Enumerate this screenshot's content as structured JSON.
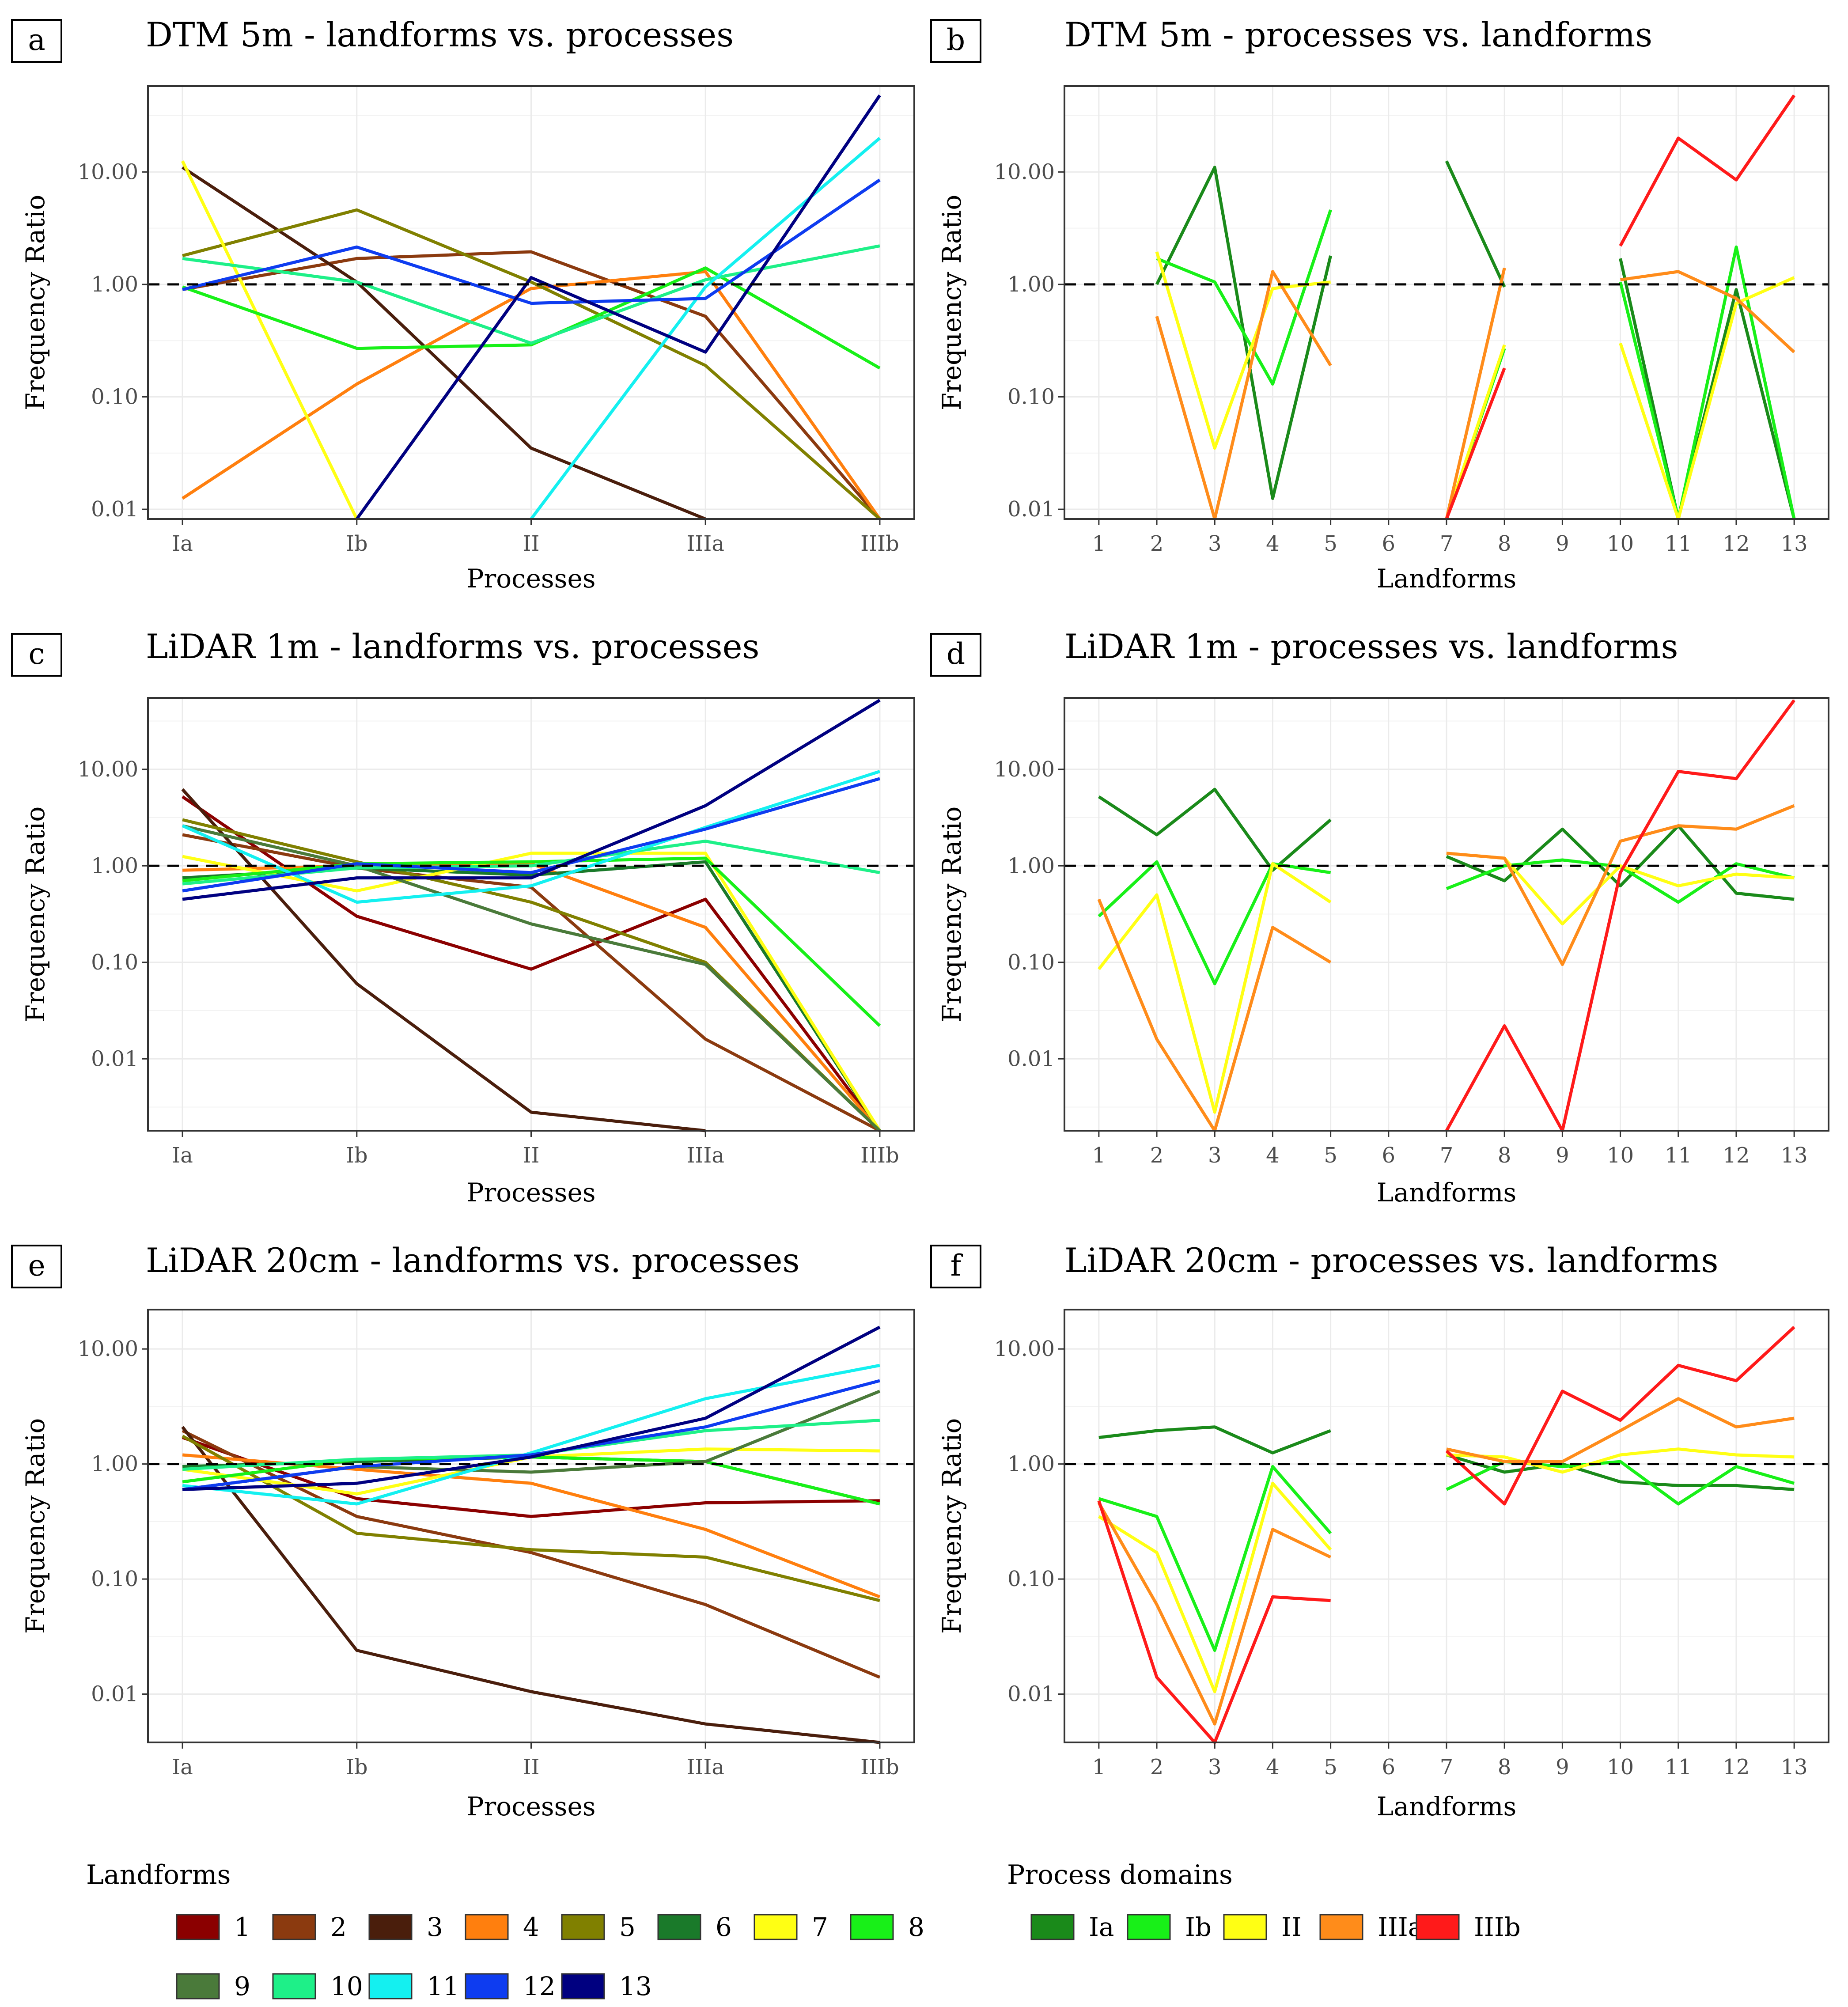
{
  "chart_data": [
    {
      "id": "a",
      "type": "line",
      "title": "DTM 5m - landforms vs. processes",
      "xlabel": "Processes",
      "ylabel": "Frequency Ratio",
      "yscale": "log10",
      "ylim": [
        0.0082,
        58
      ],
      "yticks": [
        {
          "value": 0.01,
          "label": "0.01"
        },
        {
          "value": 0.1,
          "label": "0.10"
        },
        {
          "value": 1,
          "label": "1.00"
        },
        {
          "value": 10,
          "label": "10.00"
        }
      ],
      "reference_line": 1,
      "categories": [
        "Ia",
        "Ib",
        "II",
        "IIIa",
        "IIIb"
      ],
      "series": [
        {
          "name": "2",
          "color": "#8B3A0F",
          "values": [
            0.9,
            1.7,
            1.95,
            0.52,
            0.0082
          ]
        },
        {
          "name": "3",
          "color": "#4A1E0C",
          "values": [
            11.0,
            1.05,
            0.035,
            0.0082,
            null
          ]
        },
        {
          "name": "4",
          "color": "#FF7F0E",
          "values": [
            0.0125,
            0.13,
            0.92,
            1.3,
            0.0082
          ]
        },
        {
          "name": "5",
          "color": "#808000",
          "values": [
            1.8,
            4.6,
            1.05,
            0.19,
            0.0082
          ]
        },
        {
          "name": "7",
          "color": "#FFFF14",
          "values": [
            12.5,
            0.0082,
            null,
            null,
            null
          ]
        },
        {
          "name": "8",
          "color": "#18F018",
          "values": [
            0.95,
            0.27,
            0.29,
            1.4,
            0.18
          ]
        },
        {
          "name": "10",
          "color": "#1EF088",
          "values": [
            1.7,
            1.05,
            0.3,
            1.1,
            2.2
          ]
        },
        {
          "name": "11",
          "color": "#14F0F0",
          "values": [
            null,
            null,
            0.0082,
            0.95,
            20.0
          ]
        },
        {
          "name": "12",
          "color": "#0E3CF0",
          "values": [
            0.9,
            2.15,
            0.68,
            0.75,
            8.5
          ]
        },
        {
          "name": "13",
          "color": "#000080",
          "values": [
            null,
            0.0082,
            1.15,
            0.25,
            48.0
          ]
        }
      ]
    },
    {
      "id": "b",
      "type": "line",
      "title": "DTM 5m - processes vs. landforms",
      "xlabel": "Landforms",
      "ylabel": "Frequency Ratio",
      "yscale": "log10",
      "ylim": [
        0.0082,
        58
      ],
      "yticks": [
        {
          "value": 0.01,
          "label": "0.01"
        },
        {
          "value": 0.1,
          "label": "0.10"
        },
        {
          "value": 1,
          "label": "1.00"
        },
        {
          "value": 10,
          "label": "10.00"
        }
      ],
      "reference_line": 1,
      "categories": [
        "1",
        "2",
        "3",
        "4",
        "5",
        "6",
        "7",
        "8",
        "9",
        "10",
        "11",
        "12",
        "13"
      ],
      "series": [
        {
          "name": "Ia",
          "color": "#1A8A1A",
          "values": [
            null,
            1.0,
            11.0,
            0.0125,
            1.8,
            null,
            12.5,
            0.95,
            null,
            1.7,
            0.0082,
            0.9,
            0.0082
          ]
        },
        {
          "name": "Ib",
          "color": "#18F018",
          "values": [
            null,
            1.7,
            1.05,
            0.13,
            4.6,
            null,
            0.0082,
            0.27,
            null,
            1.05,
            0.0082,
            2.15,
            0.0082
          ]
        },
        {
          "name": "II",
          "color": "#FFFF14",
          "values": [
            null,
            1.95,
            0.035,
            0.92,
            1.05,
            null,
            0.0082,
            0.29,
            null,
            0.3,
            0.0082,
            0.68,
            1.15
          ]
        },
        {
          "name": "IIIa",
          "color": "#FF8C1A",
          "values": [
            null,
            0.52,
            0.0082,
            1.3,
            0.19,
            null,
            0.0082,
            1.4,
            null,
            1.1,
            1.3,
            0.75,
            0.25
          ]
        },
        {
          "name": "IIIb",
          "color": "#FF1A1A",
          "values": [
            null,
            null,
            null,
            null,
            null,
            null,
            0.0082,
            0.18,
            null,
            2.2,
            20.0,
            8.5,
            48.0
          ]
        }
      ]
    },
    {
      "id": "c",
      "type": "line",
      "title": "LiDAR 1m - landforms vs. processes",
      "xlabel": "Processes",
      "ylabel": "Frequency Ratio",
      "yscale": "log10",
      "ylim": [
        0.0018,
        55
      ],
      "yticks": [
        {
          "value": 0.01,
          "label": "0.01"
        },
        {
          "value": 0.1,
          "label": "0.10"
        },
        {
          "value": 1,
          "label": "1.00"
        },
        {
          "value": 10,
          "label": "10.00"
        }
      ],
      "reference_line": 1,
      "categories": [
        "Ia",
        "Ib",
        "II",
        "IIIa",
        "IIIb"
      ],
      "series": [
        {
          "name": "1",
          "color": "#8B0000",
          "values": [
            5.2,
            0.3,
            0.085,
            0.45,
            0.0018
          ]
        },
        {
          "name": "2",
          "color": "#8B3A0F",
          "values": [
            2.1,
            0.95,
            0.6,
            0.016,
            0.0018
          ]
        },
        {
          "name": "3",
          "color": "#4A1E0C",
          "values": [
            6.2,
            0.06,
            0.0028,
            0.0018,
            null
          ]
        },
        {
          "name": "4",
          "color": "#FF7F0E",
          "values": [
            0.9,
            1.0,
            1.05,
            0.23,
            0.0018
          ]
        },
        {
          "name": "5",
          "color": "#808000",
          "values": [
            3.0,
            1.1,
            0.42,
            0.1,
            0.0018
          ]
        },
        {
          "name": "6",
          "color": "#1A7A2A",
          "values": [
            0.75,
            0.95,
            0.8,
            1.1,
            0.0018
          ]
        },
        {
          "name": "7",
          "color": "#FFFF14",
          "values": [
            1.25,
            0.55,
            1.35,
            1.35,
            0.0018
          ]
        },
        {
          "name": "8",
          "color": "#18F018",
          "values": [
            0.7,
            1.05,
            1.1,
            1.2,
            0.022
          ]
        },
        {
          "name": "9",
          "color": "#4A7A3A",
          "values": [
            2.6,
            1.0,
            0.25,
            0.095,
            0.0018
          ]
        },
        {
          "name": "10",
          "color": "#1EF088",
          "values": [
            0.65,
            0.95,
            1.0,
            1.8,
            0.85
          ]
        },
        {
          "name": "11",
          "color": "#14F0F0",
          "values": [
            2.6,
            0.42,
            0.62,
            2.5,
            9.5
          ]
        },
        {
          "name": "12",
          "color": "#0E3CF0",
          "values": [
            0.55,
            1.05,
            0.85,
            2.4,
            8.0
          ]
        },
        {
          "name": "13",
          "color": "#000080",
          "values": [
            0.45,
            0.75,
            0.75,
            4.2,
            52.0
          ]
        }
      ]
    },
    {
      "id": "d",
      "type": "line",
      "title": "LiDAR 1m - processes vs. landforms",
      "xlabel": "Landforms",
      "ylabel": "Frequency Ratio",
      "yscale": "log10",
      "ylim": [
        0.0018,
        55
      ],
      "yticks": [
        {
          "value": 0.01,
          "label": "0.01"
        },
        {
          "value": 0.1,
          "label": "0.10"
        },
        {
          "value": 1,
          "label": "1.00"
        },
        {
          "value": 10,
          "label": "10.00"
        }
      ],
      "reference_line": 1,
      "categories": [
        "1",
        "2",
        "3",
        "4",
        "5",
        "6",
        "7",
        "8",
        "9",
        "10",
        "11",
        "12",
        "13"
      ],
      "series": [
        {
          "name": "Ia",
          "color": "#1A8A1A",
          "values": [
            5.2,
            2.1,
            6.2,
            0.9,
            3.0,
            null,
            1.25,
            0.7,
            2.4,
            0.62,
            2.6,
            0.52,
            0.45
          ]
        },
        {
          "name": "Ib",
          "color": "#18F018",
          "values": [
            0.3,
            1.1,
            0.06,
            1.05,
            0.85,
            null,
            0.58,
            1.0,
            1.15,
            0.98,
            0.42,
            1.05,
            0.75
          ]
        },
        {
          "name": "II",
          "color": "#FFFF14",
          "values": [
            0.085,
            0.5,
            0.0028,
            1.05,
            0.42,
            null,
            1.35,
            1.2,
            0.25,
            1.0,
            0.62,
            0.82,
            0.75
          ]
        },
        {
          "name": "IIIa",
          "color": "#FF8C1A",
          "values": [
            0.45,
            0.016,
            0.0018,
            0.23,
            0.1,
            null,
            1.35,
            1.2,
            0.095,
            1.8,
            2.6,
            2.4,
            4.2
          ]
        },
        {
          "name": "IIIb",
          "color": "#FF1A1A",
          "values": [
            null,
            null,
            null,
            null,
            null,
            null,
            0.0018,
            0.022,
            0.0018,
            0.85,
            9.5,
            8.0,
            52.0
          ]
        }
      ]
    },
    {
      "id": "e",
      "type": "line",
      "title": "LiDAR 20cm - landforms vs. processes",
      "xlabel": "Processes",
      "ylabel": "Frequency Ratio",
      "yscale": "log10",
      "ylim": [
        0.0038,
        22
      ],
      "yticks": [
        {
          "value": 0.01,
          "label": "0.01"
        },
        {
          "value": 0.1,
          "label": "0.10"
        },
        {
          "value": 1,
          "label": "1.00"
        },
        {
          "value": 10,
          "label": "10.00"
        }
      ],
      "reference_line": 1,
      "categories": [
        "Ia",
        "Ib",
        "II",
        "IIIa",
        "IIIb"
      ],
      "series": [
        {
          "name": "1",
          "color": "#8B0000",
          "values": [
            1.7,
            0.5,
            0.35,
            0.46,
            0.48
          ]
        },
        {
          "name": "2",
          "color": "#8B3A0F",
          "values": [
            1.95,
            0.35,
            0.17,
            0.06,
            0.014
          ]
        },
        {
          "name": "3",
          "color": "#4A1E0C",
          "values": [
            2.1,
            0.024,
            0.0105,
            0.0055,
            0.0038
          ]
        },
        {
          "name": "4",
          "color": "#FF7F0E",
          "values": [
            1.2,
            0.9,
            0.68,
            0.27,
            0.07
          ]
        },
        {
          "name": "5",
          "color": "#808000",
          "values": [
            1.75,
            0.25,
            0.18,
            0.155,
            0.065
          ]
        },
        {
          "name": "6",
          "color": "#1A7A2A",
          "values": [
            0.95,
            1.05,
            1.15,
            1.05,
            0.45
          ]
        },
        {
          "name": "7",
          "color": "#FFFF14",
          "values": [
            0.9,
            0.55,
            1.15,
            1.35,
            1.3
          ]
        },
        {
          "name": "8",
          "color": "#18F018",
          "values": [
            0.7,
            1.1,
            1.15,
            1.05,
            0.45
          ]
        },
        {
          "name": "9",
          "color": "#4A7A3A",
          "values": [
            0.6,
            0.95,
            0.85,
            1.05,
            4.3
          ]
        },
        {
          "name": "10",
          "color": "#1EF088",
          "values": [
            0.9,
            1.1,
            1.2,
            1.95,
            2.4
          ]
        },
        {
          "name": "11",
          "color": "#14F0F0",
          "values": [
            0.65,
            0.45,
            1.25,
            3.7,
            7.2
          ]
        },
        {
          "name": "12",
          "color": "#0E3CF0",
          "values": [
            0.6,
            0.95,
            1.2,
            2.1,
            5.3
          ]
        },
        {
          "name": "13",
          "color": "#000080",
          "values": [
            0.6,
            0.68,
            1.15,
            2.5,
            15.5
          ]
        }
      ]
    },
    {
      "id": "f",
      "type": "line",
      "title": "LiDAR 20cm - processes vs. landforms",
      "xlabel": "Landforms",
      "ylabel": "Frequency Ratio",
      "yscale": "log10",
      "ylim": [
        0.0038,
        22
      ],
      "yticks": [
        {
          "value": 0.01,
          "label": "0.01"
        },
        {
          "value": 0.1,
          "label": "0.10"
        },
        {
          "value": 1,
          "label": "1.00"
        },
        {
          "value": 10,
          "label": "10.00"
        }
      ],
      "reference_line": 1,
      "categories": [
        "1",
        "2",
        "3",
        "4",
        "5",
        "6",
        "7",
        "8",
        "9",
        "10",
        "11",
        "12",
        "13"
      ],
      "series": [
        {
          "name": "Ia",
          "color": "#1A8A1A",
          "values": [
            1.7,
            1.95,
            2.1,
            1.25,
            1.95,
            null,
            1.2,
            0.85,
            1.0,
            0.7,
            0.65,
            0.65,
            0.6
          ]
        },
        {
          "name": "Ib",
          "color": "#18F018",
          "values": [
            0.5,
            0.35,
            0.024,
            0.95,
            0.25,
            null,
            0.6,
            1.05,
            0.95,
            1.05,
            0.45,
            0.95,
            0.68
          ]
        },
        {
          "name": "II",
          "color": "#FFFF14",
          "values": [
            0.35,
            0.17,
            0.0105,
            0.68,
            0.18,
            null,
            1.2,
            1.15,
            0.85,
            1.2,
            1.35,
            1.2,
            1.15
          ]
        },
        {
          "name": "IIIa",
          "color": "#FF8C1A",
          "values": [
            0.46,
            0.06,
            0.0055,
            0.27,
            0.155,
            null,
            1.35,
            1.05,
            1.05,
            1.95,
            3.7,
            2.1,
            2.5
          ]
        },
        {
          "name": "IIIb",
          "color": "#FF1A1A",
          "values": [
            0.48,
            0.014,
            0.0038,
            0.07,
            0.065,
            null,
            1.3,
            0.45,
            4.3,
            2.4,
            7.2,
            5.3,
            15.5
          ]
        }
      ]
    }
  ],
  "legends": {
    "landforms": {
      "title": "Landforms",
      "items": [
        {
          "label": "1",
          "color": "#8B0000"
        },
        {
          "label": "2",
          "color": "#8B3A0F"
        },
        {
          "label": "3",
          "color": "#4A1E0C"
        },
        {
          "label": "4",
          "color": "#FF7F0E"
        },
        {
          "label": "5",
          "color": "#808000"
        },
        {
          "label": "6",
          "color": "#1A7A2A"
        },
        {
          "label": "7",
          "color": "#FFFF14"
        },
        {
          "label": "8",
          "color": "#18F018"
        },
        {
          "label": "9",
          "color": "#4A7A3A"
        },
        {
          "label": "10",
          "color": "#1EF088"
        },
        {
          "label": "11",
          "color": "#14F0F0"
        },
        {
          "label": "12",
          "color": "#0E3CF0"
        },
        {
          "label": "13",
          "color": "#000080"
        }
      ]
    },
    "process_domains": {
      "title": "Process domains",
      "items": [
        {
          "label": "Ia",
          "color": "#1A8A1A"
        },
        {
          "label": "Ib",
          "color": "#18F018"
        },
        {
          "label": "II",
          "color": "#FFFF14"
        },
        {
          "label": "IIIa",
          "color": "#FF8C1A"
        },
        {
          "label": "IIIb",
          "color": "#FF1A1A"
        }
      ]
    }
  }
}
